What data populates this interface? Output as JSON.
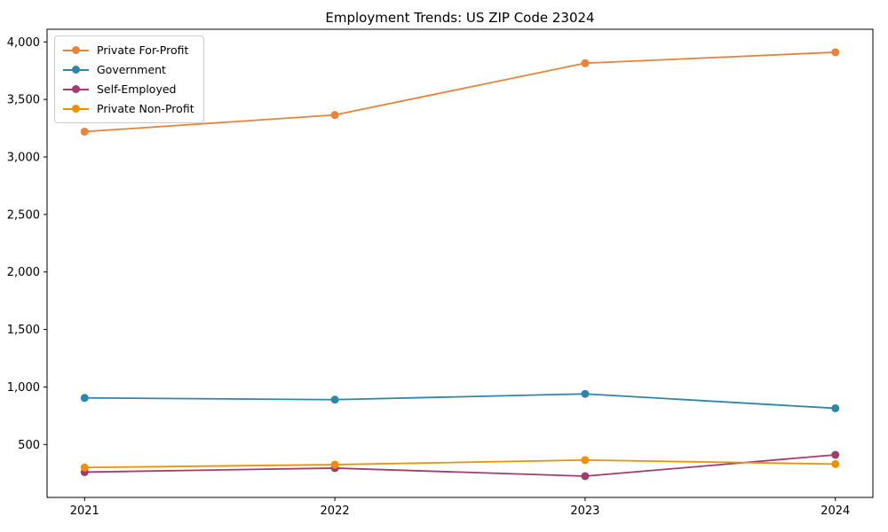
{
  "chart_data": {
    "type": "line",
    "title": "Employment Trends: US ZIP Code 23024",
    "xlabel": "",
    "ylabel": "",
    "x": [
      2021,
      2022,
      2023,
      2024
    ],
    "x_tick_labels": [
      "2021",
      "2022",
      "2023",
      "2024"
    ],
    "xlim": [
      2020.85,
      2024.15
    ],
    "ylim": [
      40,
      4110
    ],
    "yticks": [
      500,
      1000,
      1500,
      2000,
      2500,
      3000,
      3500,
      4000
    ],
    "ytick_labels": [
      "500",
      "1,000",
      "1,500",
      "2,000",
      "2,500",
      "3,000",
      "3,500",
      "4,000"
    ],
    "grid": false,
    "legend_position": "upper left",
    "series": [
      {
        "name": "Private For-Profit",
        "color": "#E8833A",
        "values": [
          3220,
          3365,
          3815,
          3910
        ]
      },
      {
        "name": "Government",
        "color": "#2E86AB",
        "values": [
          905,
          890,
          940,
          815
        ]
      },
      {
        "name": "Self-Employed",
        "color": "#A23B72",
        "values": [
          260,
          295,
          225,
          410
        ]
      },
      {
        "name": "Private Non-Profit",
        "color": "#F18F01",
        "values": [
          300,
          325,
          365,
          330
        ]
      }
    ],
    "colors": {
      "axis": "#000000",
      "background": "#ffffff",
      "legend_border": "#cccccc"
    }
  }
}
